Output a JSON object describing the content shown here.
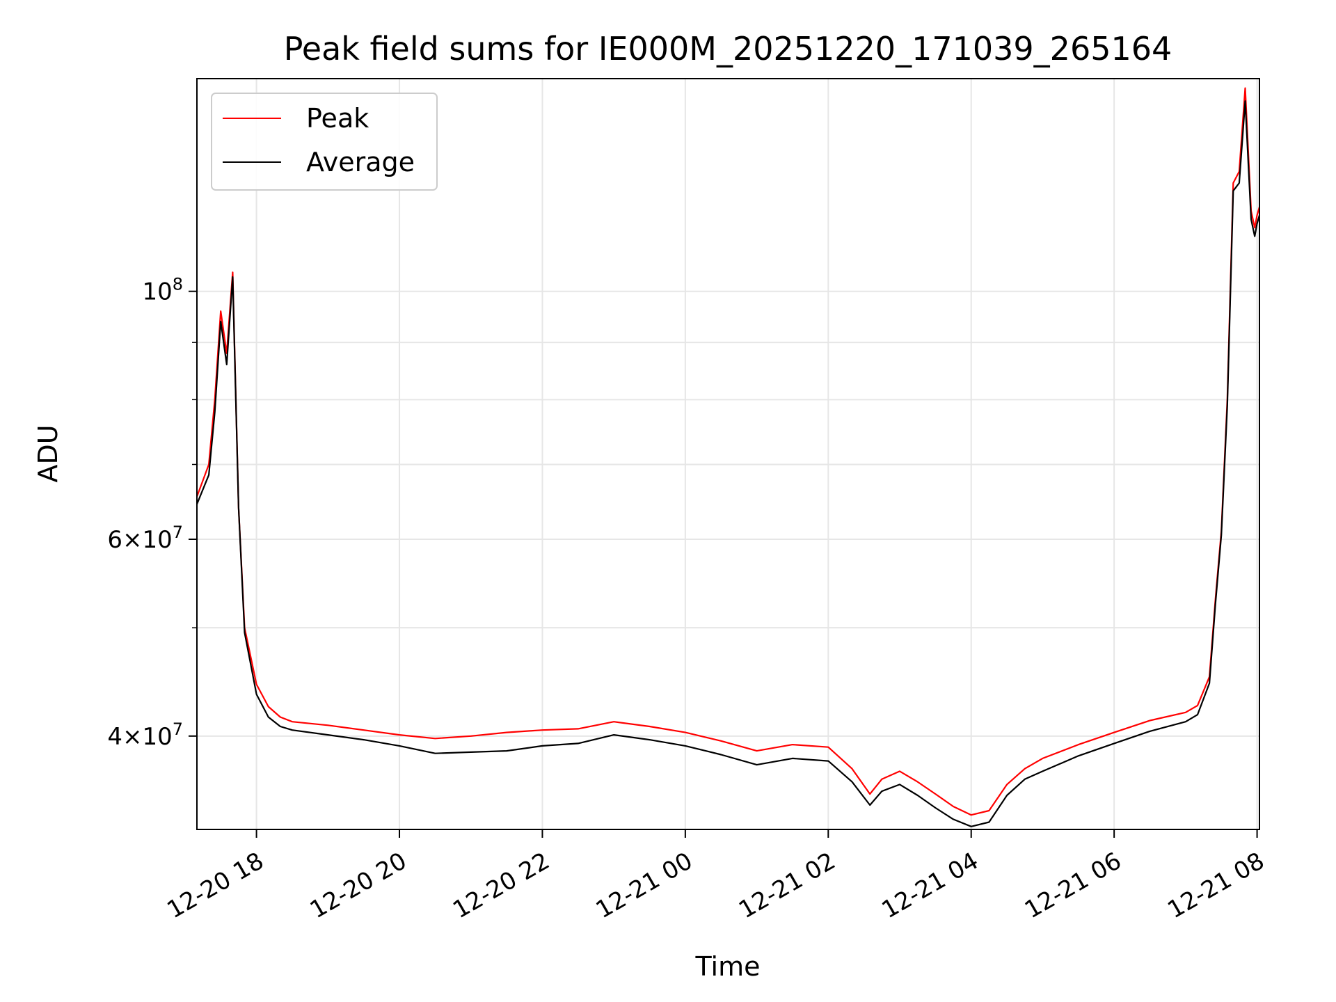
{
  "chart_data": {
    "type": "line",
    "title": "Peak field sums for IE000M_20251220_171039_265164",
    "xlabel": "Time",
    "ylabel": "ADU",
    "y_scale": "log",
    "ylim": [
      33000000,
      155000000
    ],
    "xlim": [
      "2025-12-20 17:10",
      "2025-12-21 08:02"
    ],
    "grid": true,
    "legend_position": "top-left",
    "x_ticks": [
      "12-20 18",
      "12-20 20",
      "12-20 22",
      "12-21 00",
      "12-21 02",
      "12-21 04",
      "12-21 06",
      "12-21 08"
    ],
    "x_tick_times": [
      "2025-12-20 18:00",
      "2025-12-20 20:00",
      "2025-12-20 22:00",
      "2025-12-21 00:00",
      "2025-12-21 02:00",
      "2025-12-21 04:00",
      "2025-12-21 06:00",
      "2025-12-21 08:00"
    ],
    "y_ticks": [
      {
        "value": 40000000,
        "mant": "4",
        "exp": "7"
      },
      {
        "value": 60000000,
        "mant": "6",
        "exp": "7"
      },
      {
        "value": 100000000,
        "mant": "",
        "exp": "8"
      }
    ],
    "y_minor_ticks": [
      50000000,
      70000000,
      80000000,
      90000000
    ],
    "x": [
      "2025-12-20 17:10",
      "2025-12-20 17:20",
      "2025-12-20 17:25",
      "2025-12-20 17:30",
      "2025-12-20 17:35",
      "2025-12-20 17:40",
      "2025-12-20 17:45",
      "2025-12-20 17:50",
      "2025-12-20 18:00",
      "2025-12-20 18:10",
      "2025-12-20 18:20",
      "2025-12-20 18:30",
      "2025-12-20 19:00",
      "2025-12-20 19:30",
      "2025-12-20 20:00",
      "2025-12-20 20:30",
      "2025-12-20 21:00",
      "2025-12-20 21:30",
      "2025-12-20 22:00",
      "2025-12-20 22:30",
      "2025-12-20 23:00",
      "2025-12-20 23:30",
      "2025-12-21 00:00",
      "2025-12-21 00:30",
      "2025-12-21 01:00",
      "2025-12-21 01:30",
      "2025-12-21 02:00",
      "2025-12-21 02:20",
      "2025-12-21 02:35",
      "2025-12-21 02:45",
      "2025-12-21 03:00",
      "2025-12-21 03:15",
      "2025-12-21 03:30",
      "2025-12-21 03:45",
      "2025-12-21 04:00",
      "2025-12-21 04:15",
      "2025-12-21 04:30",
      "2025-12-21 04:45",
      "2025-12-21 05:00",
      "2025-12-21 05:30",
      "2025-12-21 06:00",
      "2025-12-21 06:30",
      "2025-12-21 07:00",
      "2025-12-21 07:10",
      "2025-12-21 07:20",
      "2025-12-21 07:25",
      "2025-12-21 07:30",
      "2025-12-21 07:35",
      "2025-12-21 07:40",
      "2025-12-21 07:45",
      "2025-12-21 07:50",
      "2025-12-21 07:55",
      "2025-12-21 07:58",
      "2025-12-21 08:00",
      "2025-12-21 08:02"
    ],
    "series": [
      {
        "name": "Peak",
        "color": "#ff0000",
        "values": [
          65500000,
          70000000,
          80000000,
          96000000,
          88000000,
          104000000,
          64000000,
          50000000,
          44500000,
          42500000,
          41600000,
          41200000,
          40900000,
          40500000,
          40100000,
          39800000,
          40000000,
          40300000,
          40500000,
          40600000,
          41200000,
          40800000,
          40300000,
          39600000,
          38800000,
          39300000,
          39100000,
          37400000,
          35500000,
          36600000,
          37200000,
          36400000,
          35500000,
          34600000,
          34000000,
          34300000,
          36200000,
          37400000,
          38200000,
          39300000,
          40300000,
          41300000,
          42000000,
          42600000,
          45200000,
          53000000,
          61000000,
          80000000,
          125000000,
          128000000,
          152000000,
          118000000,
          114000000,
          117000000,
          119000000
        ]
      },
      {
        "name": "Average",
        "color": "#000000",
        "values": [
          64500000,
          68500000,
          78000000,
          94000000,
          86000000,
          103000000,
          64000000,
          49500000,
          43600000,
          41600000,
          40800000,
          40500000,
          40100000,
          39700000,
          39200000,
          38600000,
          38700000,
          38800000,
          39200000,
          39400000,
          40100000,
          39700000,
          39200000,
          38500000,
          37700000,
          38200000,
          38000000,
          36400000,
          34700000,
          35700000,
          36200000,
          35400000,
          34500000,
          33700000,
          33200000,
          33500000,
          35400000,
          36600000,
          37200000,
          38400000,
          39400000,
          40400000,
          41200000,
          41800000,
          44600000,
          52500000,
          60500000,
          79000000,
          123000000,
          125000000,
          148000000,
          116000000,
          112000000,
          115000000,
          117000000
        ]
      }
    ]
  }
}
